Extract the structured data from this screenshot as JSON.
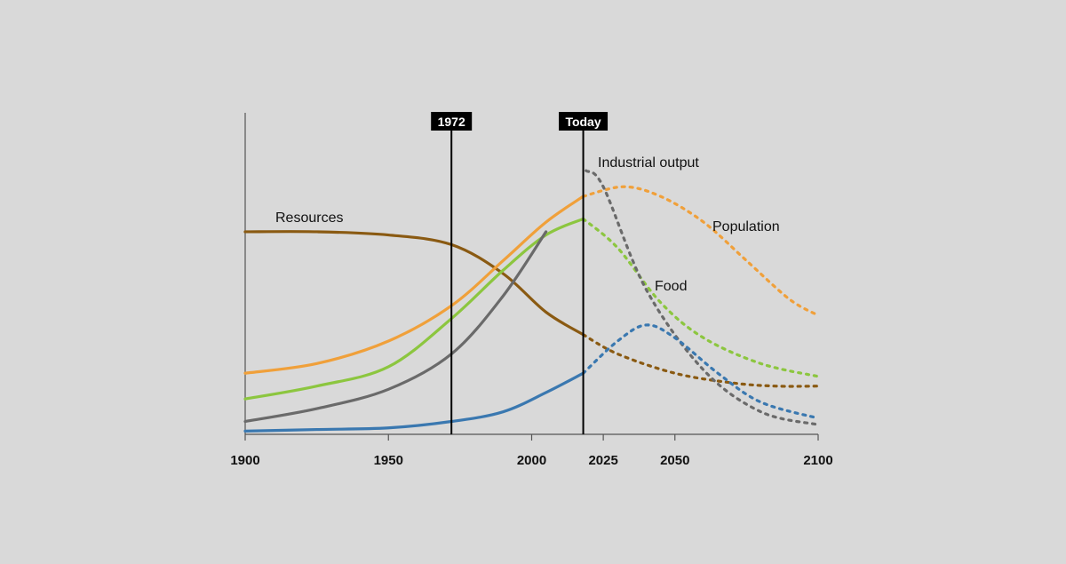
{
  "chart_data": {
    "type": "line",
    "title": "",
    "xlabel": "",
    "ylabel": "",
    "xlim": [
      1900,
      2100
    ],
    "ylim": [
      0,
      100
    ],
    "x_ticks": [
      1900,
      1950,
      2000,
      2025,
      2050,
      2100
    ],
    "y_axis_ticks": "none",
    "grid": false,
    "legend": "none (series labels placed directly on the plot)",
    "markers": [
      {
        "label": "1972",
        "x": 1972
      },
      {
        "label": "Today",
        "x": 2018
      }
    ],
    "series": [
      {
        "name": "Resources",
        "color": "#8a5a12",
        "solid_until": 2018,
        "points": [
          [
            1900,
            63
          ],
          [
            1925,
            63
          ],
          [
            1950,
            62
          ],
          [
            1972,
            59
          ],
          [
            1990,
            50
          ],
          [
            2005,
            38
          ],
          [
            2018,
            31
          ],
          [
            2030,
            25
          ],
          [
            2050,
            19
          ],
          [
            2070,
            16
          ],
          [
            2085,
            15
          ],
          [
            2100,
            15
          ]
        ]
      },
      {
        "name": "Population",
        "color": "#f0a03a",
        "solid_until": 2018,
        "points": [
          [
            1900,
            19
          ],
          [
            1925,
            22
          ],
          [
            1950,
            29
          ],
          [
            1972,
            40
          ],
          [
            1990,
            54
          ],
          [
            2005,
            66
          ],
          [
            2018,
            74
          ],
          [
            2032,
            77
          ],
          [
            2045,
            74
          ],
          [
            2060,
            66
          ],
          [
            2075,
            54
          ],
          [
            2090,
            42
          ],
          [
            2100,
            37
          ]
        ]
      },
      {
        "name": "Food",
        "color": "#8cc63f",
        "solid_until": 2018,
        "points": [
          [
            1900,
            11
          ],
          [
            1925,
            15
          ],
          [
            1950,
            21
          ],
          [
            1972,
            36
          ],
          [
            1990,
            51
          ],
          [
            2005,
            62
          ],
          [
            2018,
            67
          ],
          [
            2030,
            58
          ],
          [
            2045,
            41
          ],
          [
            2060,
            30
          ],
          [
            2080,
            22
          ],
          [
            2100,
            18
          ]
        ]
      },
      {
        "name": "Industrial output",
        "color": "#6a6a6a",
        "solid_until": 2018,
        "points": [
          [
            1900,
            4
          ],
          [
            1925,
            8
          ],
          [
            1950,
            14
          ],
          [
            1972,
            25
          ],
          [
            1990,
            43
          ],
          [
            2005,
            63
          ],
          [
            2019,
            82
          ],
          [
            2025,
            77
          ],
          [
            2040,
            45
          ],
          [
            2060,
            20
          ],
          [
            2080,
            7
          ],
          [
            2100,
            3
          ]
        ]
      },
      {
        "name": "",
        "color": "#3a78b0",
        "solid_until": 2018,
        "points": [
          [
            1900,
            1
          ],
          [
            1925,
            1.5
          ],
          [
            1950,
            2
          ],
          [
            1972,
            4
          ],
          [
            1990,
            7
          ],
          [
            2005,
            13
          ],
          [
            2018,
            19
          ],
          [
            2030,
            29
          ],
          [
            2040,
            34
          ],
          [
            2050,
            30
          ],
          [
            2065,
            19
          ],
          [
            2080,
            10
          ],
          [
            2100,
            5
          ]
        ]
      }
    ],
    "label_text": {
      "resources": "Resources",
      "population": "Population",
      "food": "Food",
      "industrial_output": "Industrial output"
    }
  }
}
